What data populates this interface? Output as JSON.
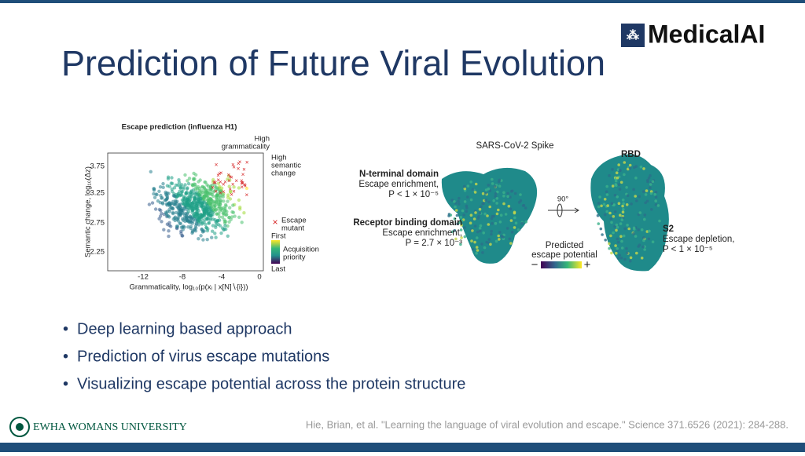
{
  "header": {
    "title": "Prediction of Future Viral Evolution",
    "logo": "MedicalAI"
  },
  "figure_left": {
    "title": "Escape prediction (influenza H1)",
    "annotation_grammaticality": [
      "High",
      "grammaticality"
    ],
    "annotation_semantic": [
      "High",
      "semantic",
      "change"
    ],
    "y_label": "Semantic change, log₁₀(Δz)",
    "x_label": "Grammaticality, log₁₀(p(xᵢ | x[N]∖{i}))",
    "yticks": [
      "3.75",
      "3.25",
      "2.75",
      "2.25"
    ],
    "xticks": [
      "-12",
      "-8",
      "-4",
      "0"
    ],
    "legend": {
      "escape": [
        "Escape",
        "mutant"
      ],
      "first": "First",
      "priority": [
        "Acquisition",
        "priority"
      ],
      "last": "Last"
    }
  },
  "figure_right": {
    "title": "SARS-CoV-2 Spike",
    "rbd": "RBD",
    "ntd": {
      "name": "N-terminal domain",
      "lines": [
        "Escape enrichment,",
        "P < 1 × 10⁻⁵"
      ]
    },
    "rbd_domain": {
      "name": "Receptor binding domain",
      "lines": [
        "Escape enrichment,",
        "P = 2.7 × 10⁻³"
      ]
    },
    "rotation": "90°",
    "colorbar": {
      "label": [
        "Predicted",
        "escape potential"
      ],
      "min": "−",
      "max": "+"
    },
    "s2": {
      "name": "S2",
      "lines": [
        "Escape depletion,",
        "P < 1 × 10⁻⁵"
      ]
    }
  },
  "bullets": [
    "Deep learning based approach",
    "Prediction of virus escape mutations",
    "Visualizing escape potential across the protein structure"
  ],
  "citation": "Hie, Brian, et al. \"Learning the language of viral evolution and escape.\" Science 371.6526 (2021): 284-288.",
  "footer": {
    "university": "EWHA WOMANS UNIVERSITY"
  }
}
